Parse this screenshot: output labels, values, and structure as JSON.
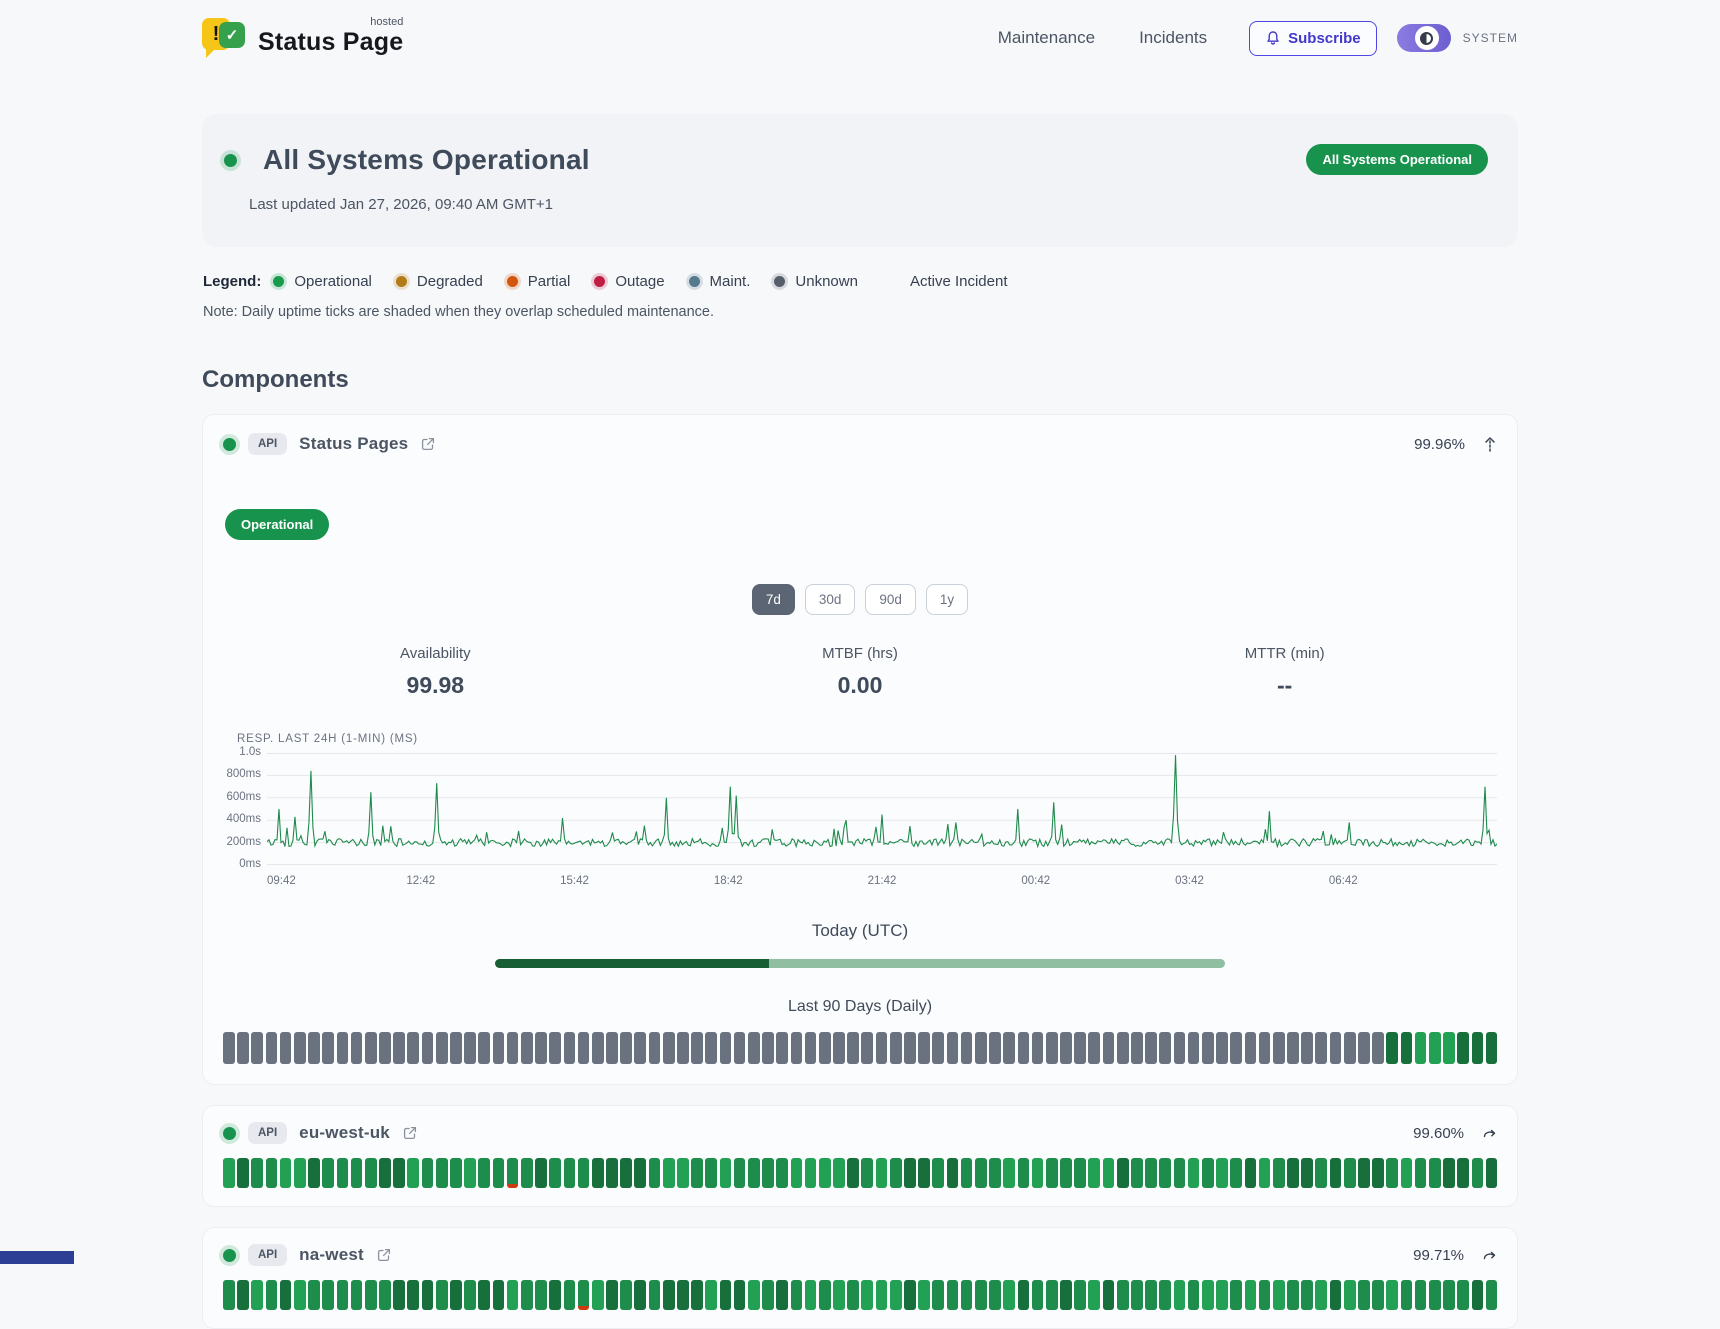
{
  "header": {
    "brand": {
      "name": "Status Page",
      "superscript": "hosted"
    },
    "nav": [
      "Maintenance",
      "Incidents"
    ],
    "subscribe_label": "Subscribe",
    "theme_mode_label": "SYSTEM"
  },
  "hero": {
    "title": "All Systems Operational",
    "last_updated": "Last updated Jan 27, 2026, 09:40 AM GMT+1",
    "status_badge": "All Systems Operational"
  },
  "legend": {
    "label": "Legend:",
    "items": [
      {
        "label": "Operational",
        "color": "#179a4b"
      },
      {
        "label": "Degraded",
        "color": "#b27b16"
      },
      {
        "label": "Partial",
        "color": "#d2560c"
      },
      {
        "label": "Outage",
        "color": "#c01d45"
      },
      {
        "label": "Maint.",
        "color": "#557a8e"
      },
      {
        "label": "Unknown",
        "color": "#555e6a"
      }
    ],
    "active_incident_label": "Active Incident",
    "note": "Note: Daily uptime ticks are shaded when they overlap scheduled maintenance."
  },
  "components": {
    "heading": "Components",
    "expanded": {
      "tag": "API",
      "name": "Status Pages",
      "uptime": "99.96%",
      "status": "Operational",
      "ranges": [
        "7d",
        "30d",
        "90d",
        "1y"
      ],
      "active_range": "7d",
      "metrics": [
        {
          "label": "Availability",
          "value": "99.98"
        },
        {
          "label": "MTBF (hrs)",
          "value": "0.00"
        },
        {
          "label": "MTTR (min)",
          "value": "--"
        }
      ],
      "today_label": "Today (UTC)",
      "today_progress_pct": 37.5,
      "history_label": "Last 90 Days (Daily)",
      "history_days": 90,
      "history_green_from": 82
    },
    "rows": [
      {
        "tag": "API",
        "name": "eu-west-uk",
        "uptime": "99.60%",
        "days": 90,
        "red_indices": [
          20
        ]
      },
      {
        "tag": "API",
        "name": "na-west",
        "uptime": "99.71%",
        "days": 90,
        "red_indices": [
          25
        ]
      }
    ]
  },
  "chart_data": {
    "type": "line",
    "title": "RESP. LAST 24H (1-MIN) (MS)",
    "x_ticks": [
      "09:42",
      "12:42",
      "15:42",
      "18:42",
      "21:42",
      "00:42",
      "03:42",
      "06:42"
    ],
    "y_ticks": [
      {
        "label": "1.0s",
        "ms": 1000
      },
      {
        "label": "800ms",
        "ms": 800
      },
      {
        "label": "600ms",
        "ms": 600
      },
      {
        "label": "400ms",
        "ms": 400
      },
      {
        "label": "200ms",
        "ms": 200
      },
      {
        "label": "0ms",
        "ms": 0
      }
    ],
    "ylim_ms": [
      0,
      1000
    ],
    "baseline_range_ms": [
      150,
      260
    ],
    "line_color": "#1f8a4c",
    "grid": true,
    "spikes": [
      {
        "x_frac": 0.01,
        "ms": 500
      },
      {
        "x_frac": 0.022,
        "ms": 430
      },
      {
        "x_frac": 0.036,
        "ms": 840
      },
      {
        "x_frac": 0.084,
        "ms": 650
      },
      {
        "x_frac": 0.138,
        "ms": 730
      },
      {
        "x_frac": 0.24,
        "ms": 420
      },
      {
        "x_frac": 0.324,
        "ms": 600
      },
      {
        "x_frac": 0.376,
        "ms": 700
      },
      {
        "x_frac": 0.382,
        "ms": 620
      },
      {
        "x_frac": 0.47,
        "ms": 400
      },
      {
        "x_frac": 0.5,
        "ms": 450
      },
      {
        "x_frac": 0.56,
        "ms": 380
      },
      {
        "x_frac": 0.61,
        "ms": 500
      },
      {
        "x_frac": 0.64,
        "ms": 560
      },
      {
        "x_frac": 0.738,
        "ms": 980
      },
      {
        "x_frac": 0.815,
        "ms": 480
      },
      {
        "x_frac": 0.88,
        "ms": 380
      },
      {
        "x_frac": 0.991,
        "ms": 700
      }
    ]
  },
  "theme": {
    "accent_green": "#17934d",
    "indigo": "#4f46e5",
    "toggle_purple": "#7b6cd9",
    "tick_gray": "#6a7280",
    "tick_green_dark": "#17703c",
    "tick_green_mid": "#1e8c4a",
    "tick_green_bright": "#22a053",
    "tick_red": "#cf3a12",
    "progress_dark": "#175e35",
    "progress_light": "#8fbfa0"
  }
}
